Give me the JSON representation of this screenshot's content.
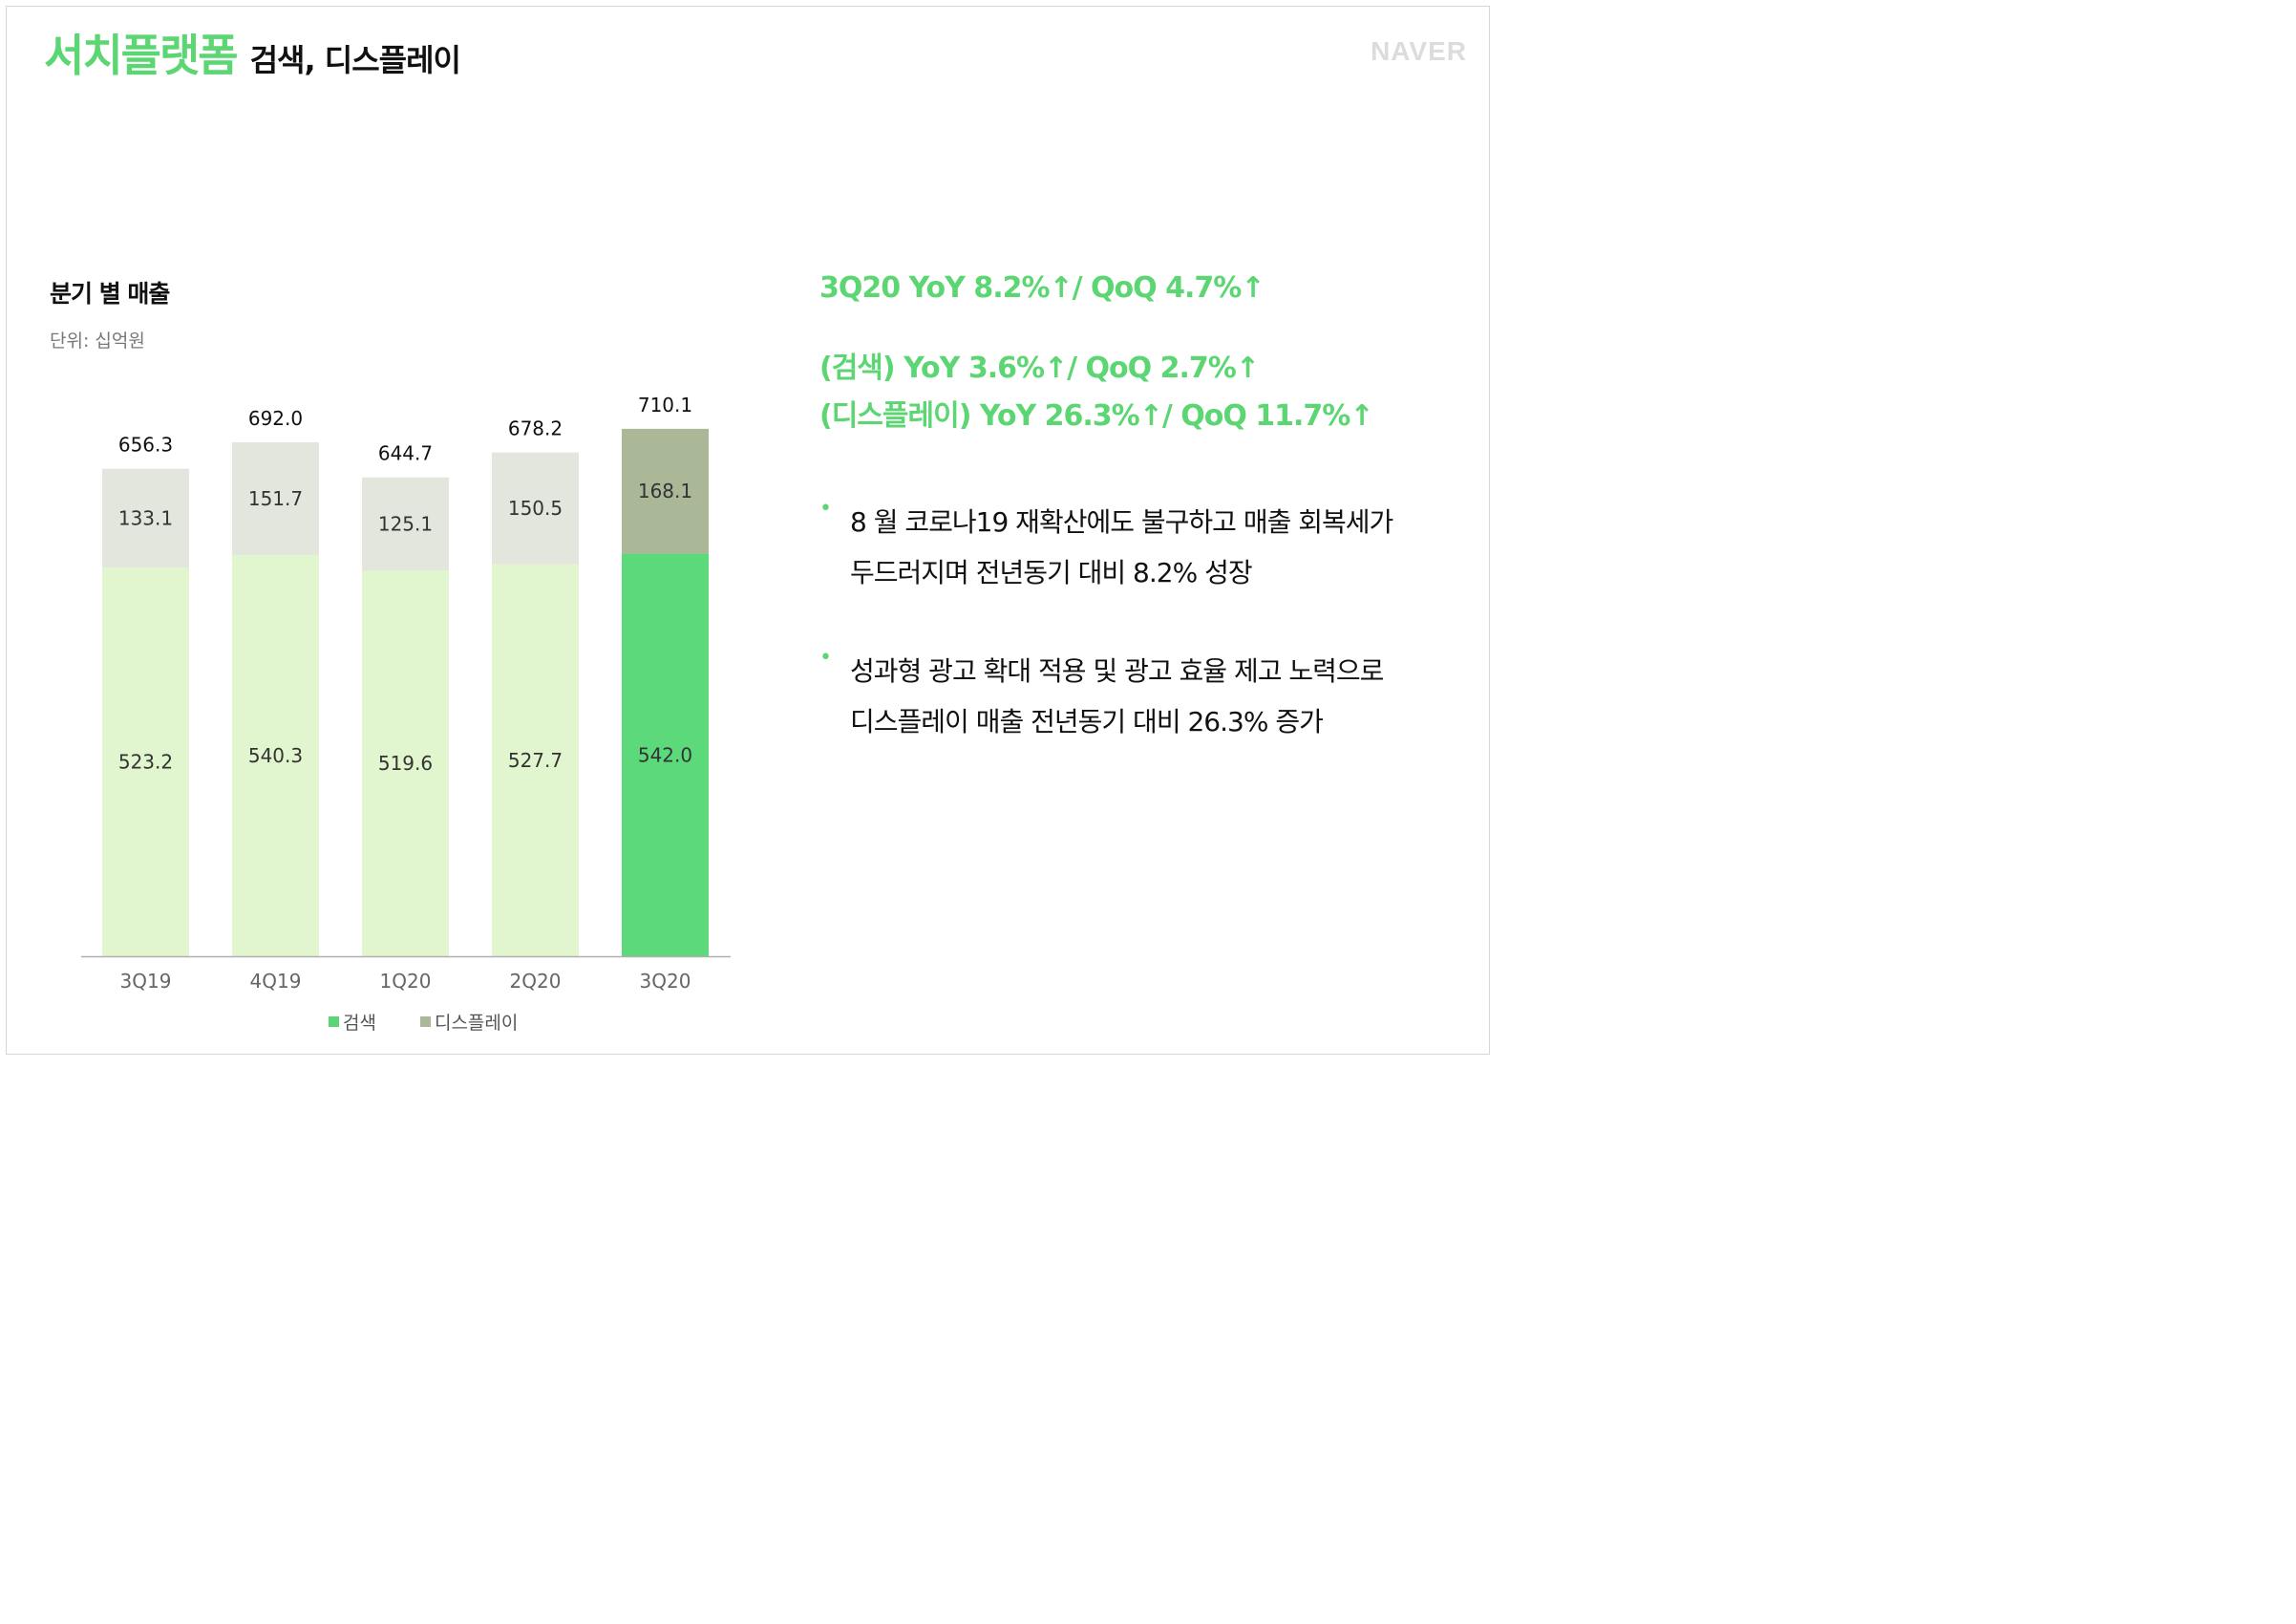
{
  "header": {
    "title_main": "서치플랫폼",
    "title_sub": "검색, 디스플레이",
    "logo_text": "NAVER"
  },
  "chart_header": {
    "title": "분기 별 매출",
    "unit": "단위: 십억원"
  },
  "chart_data": {
    "type": "bar",
    "stacked": true,
    "categories": [
      "3Q19",
      "4Q19",
      "1Q20",
      "2Q20",
      "3Q20"
    ],
    "series": [
      {
        "name": "검색",
        "values": [
          523.2,
          540.3,
          519.6,
          527.7,
          542.0
        ],
        "labels": [
          "523.2",
          "540.3",
          "519.6",
          "527.7",
          "542.0"
        ]
      },
      {
        "name": "디스플레이",
        "values": [
          133.1,
          151.7,
          125.1,
          150.5,
          168.1
        ],
        "labels": [
          "133.1",
          "151.7",
          "125.1",
          "150.5",
          "168.1"
        ]
      }
    ],
    "totals": [
      656.3,
      692.0,
      644.7,
      678.2,
      710.1
    ],
    "total_labels": [
      "656.3",
      "692.0",
      "644.7",
      "678.2",
      "710.1"
    ],
    "highlight_category": "3Q20",
    "colors": {
      "search": "#e1f5ce",
      "display": "#e3e6dd",
      "search_highlight": "#5cd97a",
      "display_highlight": "#aab898",
      "axis": "#b0b0b0",
      "legend_search": "#5cd672",
      "legend_display": "#aab898"
    },
    "legend_position": "bottom"
  },
  "highlights": [
    "3Q20 YoY 8.2%↑/ QoQ 4.7%↑",
    "(검색) YoY 3.6%↑/ QoQ 2.7%↑",
    "(디스플레이) YoY 26.3%↑/ QoQ 11.7%↑"
  ],
  "bullets": [
    {
      "marker": "•",
      "line1": "8 월 코로나19 재확산에도 불구하고 매출 회복세가",
      "line2": "두드러지며 전년동기 대비 8.2% 성장"
    },
    {
      "marker": "•",
      "line1": "성과형 광고 확대 적용 및 광고 효율 제고 노력으로",
      "line2": "디스플레이 매출 전년동기 대비 26.3% 증가"
    }
  ]
}
